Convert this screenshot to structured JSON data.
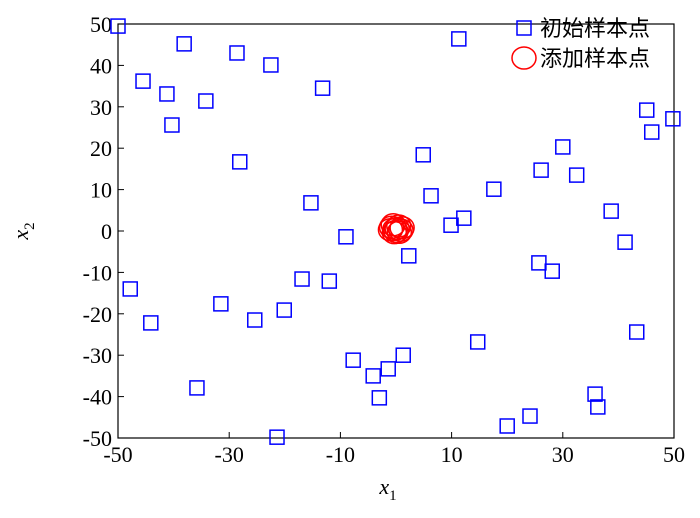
{
  "chart_data": {
    "type": "scatter",
    "xlabel": {
      "main": "x",
      "sub": "1"
    },
    "ylabel": {
      "main": "x",
      "sub": "2"
    },
    "xlim": [
      -50,
      50
    ],
    "xticks": [
      -50,
      -30,
      -10,
      10,
      30,
      50
    ],
    "ylim": [
      -50,
      50
    ],
    "yticks": [
      -50,
      -40,
      -30,
      -20,
      -10,
      0,
      10,
      20,
      30,
      40,
      50
    ],
    "legend": "upper right",
    "series": [
      {
        "name": "初始样本点",
        "color": "#0000ff",
        "marker": "square",
        "x": [
          -50,
          -45.5,
          -41.2,
          -38.1,
          -40.3,
          -34.2,
          -28.6,
          -22.5,
          -28.1,
          -13.2,
          -15.3,
          -9.0,
          -47.8,
          -44.1,
          -31.5,
          -25.4,
          -20.1,
          -16.9,
          -12.0,
          -7.7,
          -4.1,
          -1.4,
          -3.0,
          1.3,
          -35.8,
          -21.4,
          2.3,
          4.9,
          6.3,
          9.9,
          12.2,
          11.3,
          17.6,
          14.7,
          20.0,
          24.1,
          26.1,
          30.0,
          32.5,
          25.7,
          28.1,
          38.7,
          41.2,
          43.3,
          35.8,
          36.3,
          45.1,
          46.0,
          49.8
        ],
        "values": [
          49.5,
          36.2,
          33.1,
          45.2,
          25.6,
          31.4,
          43.0,
          40.1,
          16.7,
          34.5,
          6.8,
          -1.4,
          -14.0,
          -22.2,
          -17.6,
          -21.5,
          -19.1,
          -11.6,
          -12.1,
          -31.2,
          -35.0,
          -33.3,
          -40.3,
          -30.0,
          -37.9,
          -49.8,
          -6.0,
          18.4,
          8.5,
          1.4,
          3.1,
          46.4,
          10.1,
          -26.8,
          -47.1,
          -44.7,
          14.7,
          20.3,
          13.5,
          -7.7,
          -9.7,
          4.8,
          -2.7,
          -24.4,
          -39.4,
          -42.5,
          29.2,
          23.9,
          27.1
        ]
      },
      {
        "name": "添加样本点",
        "color": "#ff0000",
        "marker": "circle",
        "x": [
          -0.8,
          0.5,
          -0.3,
          0.9,
          -1.0,
          0.2,
          -0.5,
          1.1,
          0.0,
          -0.2,
          0.6
        ],
        "values": [
          0.9,
          1.2,
          -0.4,
          0.2,
          0.3,
          0.6,
          1.5,
          0.8,
          -0.1,
          0.4,
          -0.3
        ]
      }
    ]
  }
}
